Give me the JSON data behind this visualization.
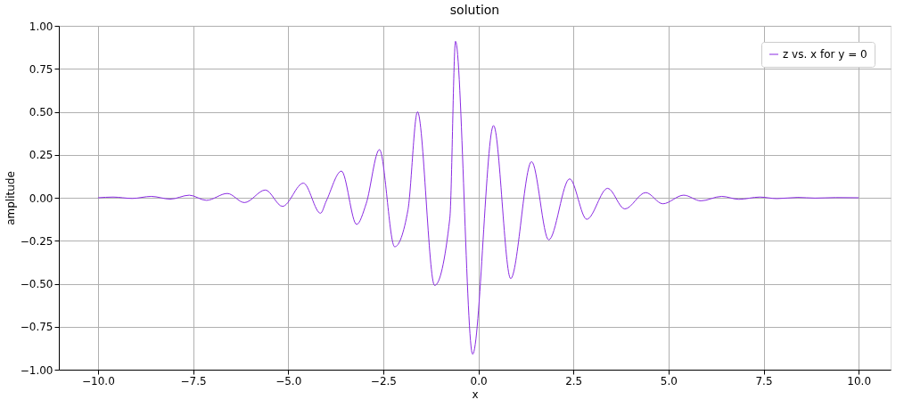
{
  "chart_data": {
    "type": "line",
    "title": "solution",
    "xlabel": "x",
    "ylabel": "amplitude",
    "x": [
      -10,
      -9.6,
      -9.1,
      -8.6,
      -8.1,
      -7.6,
      -7.15,
      -6.6,
      -6.15,
      -5.6,
      -5.15,
      -4.6,
      -4.15,
      -4.0,
      -3.6,
      -3.2,
      -2.95,
      -2.6,
      -2.2,
      -1.85,
      -1.6,
      -1.15,
      -0.75,
      -0.6,
      -0.15,
      0.4,
      0.85,
      1.4,
      1.85,
      2.4,
      2.85,
      3.4,
      3.85,
      4.4,
      4.85,
      5.4,
      5.85,
      6.4,
      6.85,
      7.4,
      7.85,
      8.4,
      8.85,
      9.4,
      10
    ],
    "series": [
      {
        "name": "z vs. x for y = 0",
        "color": "#8a2be2",
        "values": [
          0,
          0.004,
          -0.004,
          0.008,
          -0.008,
          0.015,
          -0.015,
          0.025,
          -0.028,
          0.045,
          -0.05,
          0.085,
          -0.09,
          -0.02,
          0.155,
          -0.155,
          -0.035,
          0.28,
          -0.285,
          -0.07,
          0.5,
          -0.51,
          -0.12,
          0.91,
          -0.91,
          0.42,
          -0.47,
          0.21,
          -0.245,
          0.11,
          -0.125,
          0.055,
          -0.065,
          0.03,
          -0.035,
          0.015,
          -0.018,
          0.008,
          -0.009,
          0.004,
          -0.005,
          0.002,
          -0.002,
          0.001,
          0
        ]
      }
    ],
    "xlim": [
      -11.03,
      10.84
    ],
    "xticks": [
      {
        "value": -10,
        "label": "−10.0"
      },
      {
        "value": -7.5,
        "label": "−7.5"
      },
      {
        "value": -5,
        "label": "−5.0"
      },
      {
        "value": -2.5,
        "label": "−2.5"
      },
      {
        "value": 0,
        "label": "0.0"
      },
      {
        "value": 2.5,
        "label": "2.5"
      },
      {
        "value": 5,
        "label": "5.0"
      },
      {
        "value": 7.5,
        "label": "7.5"
      },
      {
        "value": 10,
        "label": "10.0"
      }
    ],
    "ylim": [
      -1,
      1
    ],
    "yticks": [
      {
        "value": -1,
        "label": "−1.00"
      },
      {
        "value": -0.75,
        "label": "−0.75"
      },
      {
        "value": -0.5,
        "label": "−0.50"
      },
      {
        "value": -0.25,
        "label": "−0.25"
      },
      {
        "value": 0,
        "label": "0.00"
      },
      {
        "value": 0.25,
        "label": "0.25"
      },
      {
        "value": 0.5,
        "label": "0.50"
      },
      {
        "value": 0.75,
        "label": "0.75"
      },
      {
        "value": 1,
        "label": "1.00"
      }
    ],
    "grid": true,
    "legend": "top right",
    "marker": "none",
    "line_style": "solid"
  }
}
